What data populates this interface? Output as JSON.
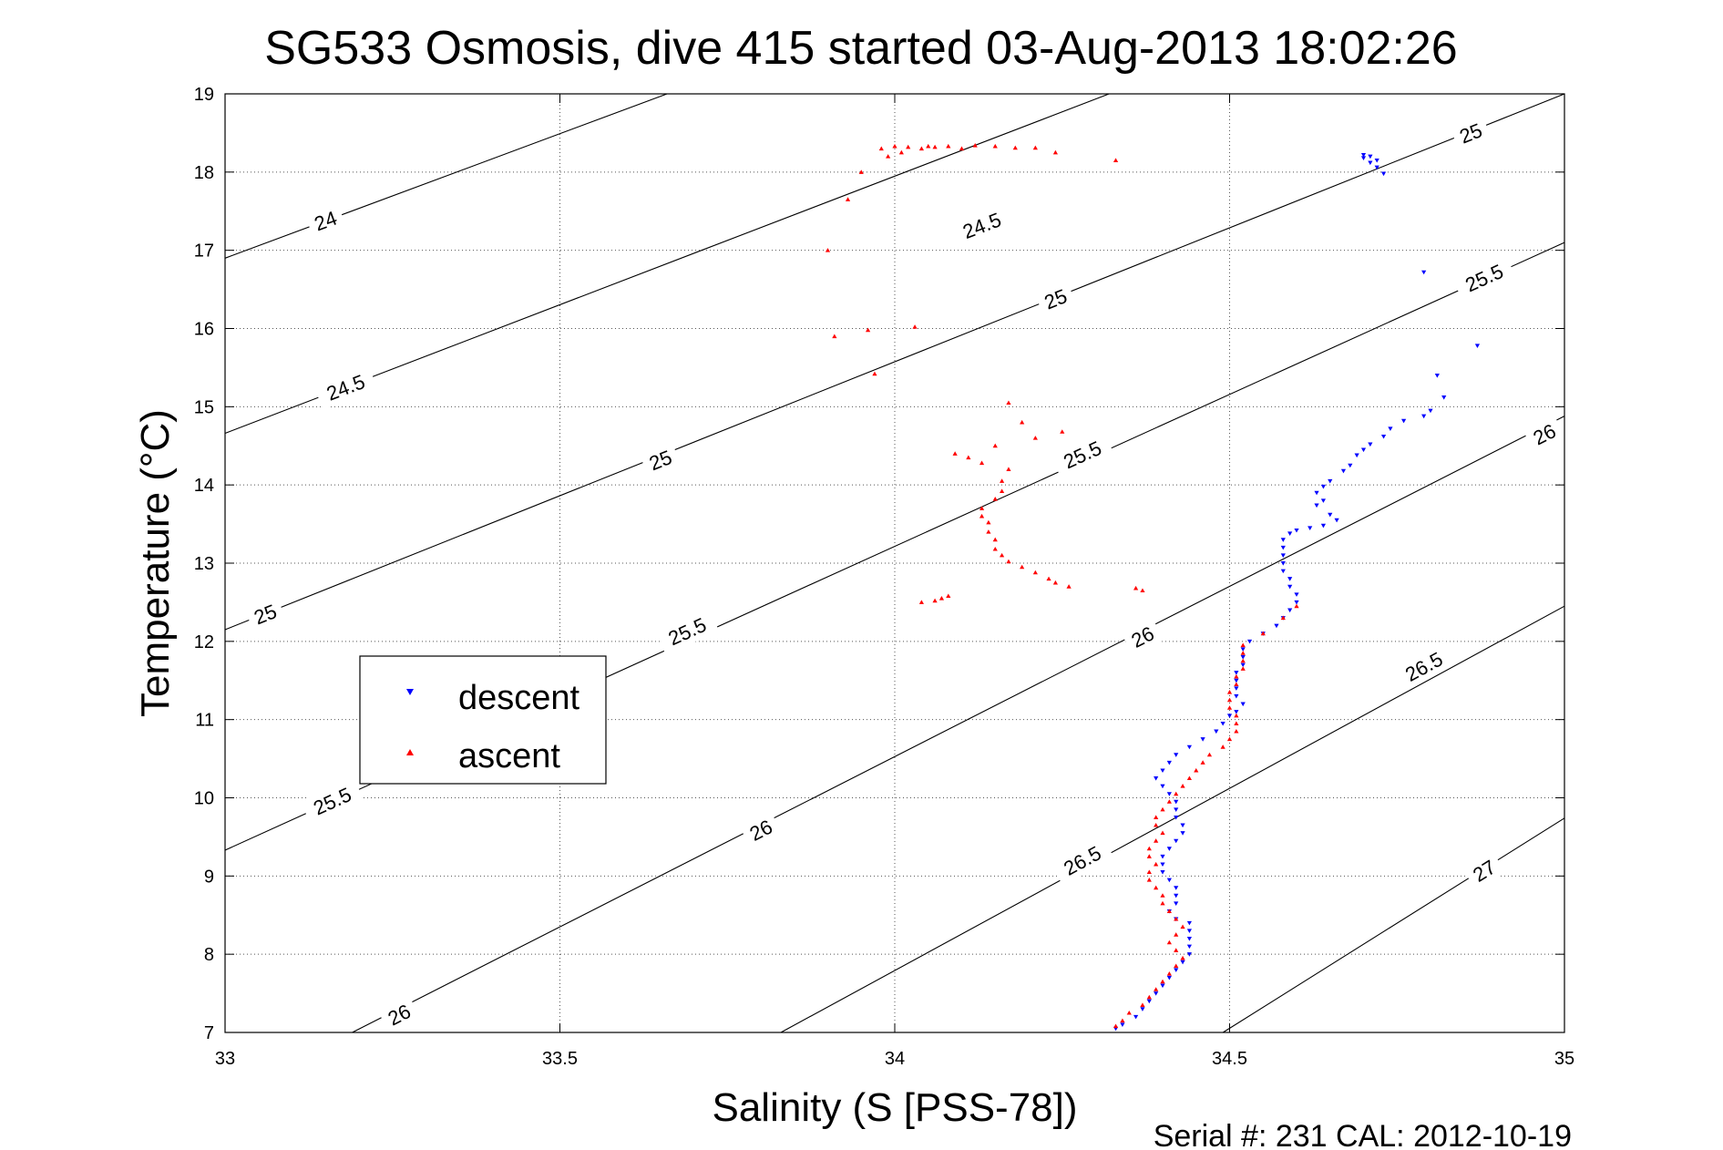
{
  "chart_data": {
    "type": "scatter",
    "title": "SG533 Osmosis, dive 415 started 03-Aug-2013 18:02:26",
    "xlabel": "Salinity (S [PSS-78])",
    "ylabel": "Temperature (°C)",
    "footer": "Serial #: 231  CAL: 2012-10-19",
    "xlim": [
      33,
      35
    ],
    "ylim": [
      7,
      19
    ],
    "xticks": [
      33,
      33.5,
      34,
      34.5,
      35
    ],
    "xtick_labels": [
      "33",
      "33.5",
      "34",
      "34.5",
      "35"
    ],
    "yticks": [
      7,
      8,
      9,
      10,
      11,
      12,
      13,
      14,
      15,
      16,
      17,
      18,
      19
    ],
    "ytick_labels": [
      "7",
      "8",
      "9",
      "10",
      "11",
      "12",
      "13",
      "14",
      "15",
      "16",
      "17",
      "18",
      "19"
    ],
    "grid": true,
    "legend_position": "center-left",
    "contours": [
      {
        "level": "24",
        "lines": [
          [
            [
              33.0,
              16.9
            ],
            [
              33.66,
              19.0
            ]
          ]
        ],
        "labels": [
          {
            "x": 33.15,
            "y": 17.38
          }
        ]
      },
      {
        "level": "24.5",
        "lines": [
          [
            [
              33.0,
              14.66
            ],
            [
              34.32,
              19.0
            ]
          ]
        ],
        "labels": [
          {
            "x": 34.13,
            "y": 17.32
          },
          {
            "x": 33.18,
            "y": 15.25
          }
        ]
      },
      {
        "level": "25",
        "lines": [
          [
            [
              33.0,
              12.15
            ],
            [
              35.0,
              19.0
            ]
          ]
        ],
        "labels": [
          {
            "x": 34.86,
            "y": 18.5
          },
          {
            "x": 34.24,
            "y": 16.38
          },
          {
            "x": 33.65,
            "y": 14.32
          },
          {
            "x": 33.06,
            "y": 12.35
          }
        ]
      },
      {
        "level": "25.5",
        "lines": [
          [
            [
              33.0,
              9.33
            ],
            [
              35.0,
              17.1
            ]
          ]
        ],
        "labels": [
          {
            "x": 34.88,
            "y": 16.65
          },
          {
            "x": 34.28,
            "y": 14.39
          },
          {
            "x": 33.69,
            "y": 12.13
          },
          {
            "x": 33.16,
            "y": 9.96
          }
        ]
      },
      {
        "level": "26",
        "lines": [
          [
            [
              33.19,
              7.0
            ],
            [
              35.0,
              14.88
            ]
          ]
        ],
        "labels": [
          {
            "x": 34.97,
            "y": 14.65
          },
          {
            "x": 34.37,
            "y": 12.06
          },
          {
            "x": 33.8,
            "y": 9.59
          },
          {
            "x": 33.26,
            "y": 7.23
          }
        ]
      },
      {
        "level": "26.5",
        "lines": [
          [
            [
              33.83,
              7.0
            ],
            [
              35.0,
              12.45
            ]
          ]
        ],
        "labels": [
          {
            "x": 34.79,
            "y": 11.68
          },
          {
            "x": 34.28,
            "y": 9.2
          }
        ]
      },
      {
        "level": "27",
        "lines": [
          [
            [
              34.49,
              7.0
            ],
            [
              35.0,
              9.74
            ]
          ]
        ],
        "labels": [
          {
            "x": 34.88,
            "y": 9.07
          }
        ]
      }
    ],
    "series": [
      {
        "name": "descent",
        "color": "#0000ff",
        "marker": "triangle-down",
        "points": [
          [
            34.7,
            18.22
          ],
          [
            34.71,
            18.2
          ],
          [
            34.7,
            18.18
          ],
          [
            34.72,
            18.15
          ],
          [
            34.71,
            18.12
          ],
          [
            34.72,
            18.06
          ],
          [
            34.73,
            17.98
          ],
          [
            34.79,
            16.72
          ],
          [
            34.87,
            15.78
          ],
          [
            34.81,
            15.4
          ],
          [
            34.82,
            15.12
          ],
          [
            34.8,
            14.95
          ],
          [
            34.79,
            14.88
          ],
          [
            34.76,
            14.82
          ],
          [
            34.74,
            14.72
          ],
          [
            34.73,
            14.62
          ],
          [
            34.71,
            14.52
          ],
          [
            34.7,
            14.45
          ],
          [
            34.69,
            14.38
          ],
          [
            34.68,
            14.25
          ],
          [
            34.67,
            14.18
          ],
          [
            34.65,
            14.05
          ],
          [
            34.64,
            13.98
          ],
          [
            34.63,
            13.9
          ],
          [
            34.64,
            13.8
          ],
          [
            34.63,
            13.74
          ],
          [
            34.65,
            13.62
          ],
          [
            34.66,
            13.55
          ],
          [
            34.64,
            13.48
          ],
          [
            34.62,
            13.45
          ],
          [
            34.6,
            13.42
          ],
          [
            34.59,
            13.38
          ],
          [
            34.58,
            13.3
          ],
          [
            34.58,
            13.2
          ],
          [
            34.58,
            13.1
          ],
          [
            34.58,
            13.0
          ],
          [
            34.58,
            12.9
          ],
          [
            34.59,
            12.8
          ],
          [
            34.59,
            12.7
          ],
          [
            34.6,
            12.6
          ],
          [
            34.6,
            12.5
          ],
          [
            34.59,
            12.4
          ],
          [
            34.58,
            12.3
          ],
          [
            34.57,
            12.2
          ],
          [
            34.55,
            12.1
          ],
          [
            34.53,
            12.0
          ],
          [
            34.52,
            11.9
          ],
          [
            34.52,
            11.8
          ],
          [
            34.52,
            11.7
          ],
          [
            34.51,
            11.6
          ],
          [
            34.51,
            11.5
          ],
          [
            34.51,
            11.4
          ],
          [
            34.51,
            11.3
          ],
          [
            34.52,
            11.2
          ],
          [
            34.51,
            11.1
          ],
          [
            34.5,
            11.05
          ],
          [
            34.49,
            10.95
          ],
          [
            34.48,
            10.85
          ],
          [
            34.46,
            10.75
          ],
          [
            34.44,
            10.65
          ],
          [
            34.42,
            10.55
          ],
          [
            34.41,
            10.45
          ],
          [
            34.4,
            10.35
          ],
          [
            34.39,
            10.25
          ],
          [
            34.4,
            10.15
          ],
          [
            34.41,
            10.05
          ],
          [
            34.42,
            9.95
          ],
          [
            34.42,
            9.85
          ],
          [
            34.42,
            9.75
          ],
          [
            34.43,
            9.65
          ],
          [
            34.43,
            9.55
          ],
          [
            34.42,
            9.45
          ],
          [
            34.41,
            9.35
          ],
          [
            34.4,
            9.25
          ],
          [
            34.4,
            9.15
          ],
          [
            34.4,
            9.05
          ],
          [
            34.41,
            8.95
          ],
          [
            34.42,
            8.85
          ],
          [
            34.42,
            8.75
          ],
          [
            34.42,
            8.65
          ],
          [
            34.41,
            8.55
          ],
          [
            34.42,
            8.45
          ],
          [
            34.44,
            8.4
          ],
          [
            34.44,
            8.3
          ],
          [
            34.44,
            8.2
          ],
          [
            34.44,
            8.1
          ],
          [
            34.44,
            8.0
          ],
          [
            34.43,
            7.9
          ],
          [
            34.42,
            7.8
          ],
          [
            34.41,
            7.7
          ],
          [
            34.4,
            7.6
          ],
          [
            34.39,
            7.5
          ],
          [
            34.38,
            7.4
          ],
          [
            34.37,
            7.3
          ],
          [
            34.36,
            7.2
          ],
          [
            34.34,
            7.1
          ],
          [
            34.33,
            7.05
          ]
        ]
      },
      {
        "name": "ascent",
        "color": "#ff0000",
        "marker": "triangle-up",
        "points": [
          [
            34.33,
            7.08
          ],
          [
            34.34,
            7.15
          ],
          [
            34.35,
            7.25
          ],
          [
            34.37,
            7.35
          ],
          [
            34.38,
            7.45
          ],
          [
            34.39,
            7.55
          ],
          [
            34.4,
            7.65
          ],
          [
            34.41,
            7.75
          ],
          [
            34.42,
            7.85
          ],
          [
            34.43,
            7.95
          ],
          [
            34.42,
            8.05
          ],
          [
            34.41,
            8.15
          ],
          [
            34.42,
            8.25
          ],
          [
            34.43,
            8.35
          ],
          [
            34.42,
            8.45
          ],
          [
            34.41,
            8.55
          ],
          [
            34.4,
            8.65
          ],
          [
            34.4,
            8.75
          ],
          [
            34.39,
            8.85
          ],
          [
            34.38,
            8.95
          ],
          [
            34.38,
            9.05
          ],
          [
            34.39,
            9.15
          ],
          [
            34.38,
            9.25
          ],
          [
            34.38,
            9.35
          ],
          [
            34.39,
            9.45
          ],
          [
            34.4,
            9.55
          ],
          [
            34.39,
            9.65
          ],
          [
            34.39,
            9.75
          ],
          [
            34.4,
            9.85
          ],
          [
            34.41,
            9.95
          ],
          [
            34.42,
            10.05
          ],
          [
            34.43,
            10.15
          ],
          [
            34.44,
            10.25
          ],
          [
            34.45,
            10.35
          ],
          [
            34.46,
            10.45
          ],
          [
            34.47,
            10.55
          ],
          [
            34.49,
            10.65
          ],
          [
            34.5,
            10.75
          ],
          [
            34.51,
            10.85
          ],
          [
            34.51,
            10.95
          ],
          [
            34.51,
            11.05
          ],
          [
            34.5,
            11.15
          ],
          [
            34.5,
            11.25
          ],
          [
            34.5,
            11.35
          ],
          [
            34.51,
            11.45
          ],
          [
            34.51,
            11.55
          ],
          [
            34.52,
            11.65
          ],
          [
            34.52,
            11.75
          ],
          [
            34.52,
            11.85
          ],
          [
            34.52,
            11.95
          ],
          [
            34.55,
            12.1
          ],
          [
            34.58,
            12.3
          ],
          [
            34.6,
            12.45
          ],
          [
            34.36,
            12.68
          ],
          [
            34.37,
            12.65
          ],
          [
            34.26,
            12.7
          ],
          [
            34.24,
            12.75
          ],
          [
            34.23,
            12.8
          ],
          [
            34.21,
            12.88
          ],
          [
            34.19,
            12.95
          ],
          [
            34.17,
            13.02
          ],
          [
            34.16,
            13.1
          ],
          [
            34.15,
            13.18
          ],
          [
            34.15,
            13.3
          ],
          [
            34.14,
            13.4
          ],
          [
            34.14,
            13.52
          ],
          [
            34.13,
            13.6
          ],
          [
            34.13,
            13.7
          ],
          [
            34.15,
            13.82
          ],
          [
            34.16,
            13.92
          ],
          [
            34.16,
            14.05
          ],
          [
            34.17,
            14.2
          ],
          [
            34.13,
            14.28
          ],
          [
            34.09,
            14.4
          ],
          [
            34.11,
            14.35
          ],
          [
            34.15,
            14.5
          ],
          [
            34.21,
            14.6
          ],
          [
            34.19,
            14.8
          ],
          [
            34.17,
            15.05
          ],
          [
            34.25,
            14.68
          ],
          [
            34.04,
            12.5
          ],
          [
            34.07,
            12.55
          ],
          [
            34.08,
            12.58
          ],
          [
            34.06,
            12.52
          ],
          [
            33.91,
            15.9
          ],
          [
            33.96,
            15.98
          ],
          [
            34.03,
            16.02
          ],
          [
            33.97,
            15.42
          ],
          [
            33.9,
            17.0
          ],
          [
            33.93,
            17.65
          ],
          [
            33.95,
            18.0
          ],
          [
            33.98,
            18.3
          ],
          [
            34.0,
            18.33
          ],
          [
            34.02,
            18.32
          ],
          [
            34.04,
            18.3
          ],
          [
            34.06,
            18.32
          ],
          [
            34.08,
            18.33
          ],
          [
            34.1,
            18.3
          ],
          [
            34.12,
            18.34
          ],
          [
            34.15,
            18.33
          ],
          [
            34.18,
            18.31
          ],
          [
            34.21,
            18.31
          ],
          [
            34.24,
            18.25
          ],
          [
            34.33,
            18.15
          ],
          [
            33.99,
            18.2
          ],
          [
            34.01,
            18.25
          ],
          [
            34.05,
            18.33
          ]
        ]
      }
    ]
  }
}
